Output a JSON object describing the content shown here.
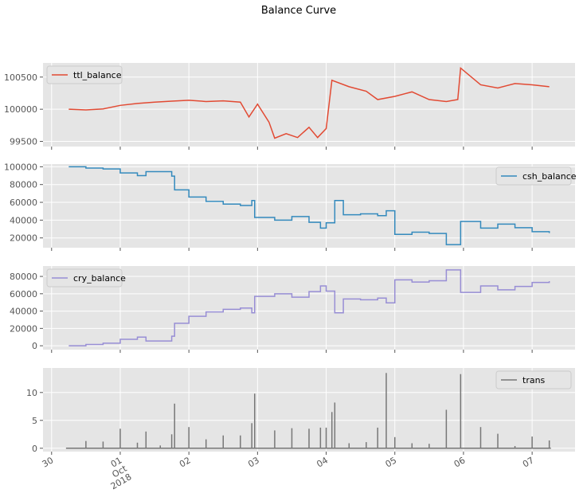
{
  "chart_data": {
    "title": "Balance Curve",
    "type": "line",
    "x_axis": {
      "tick_labels": [
        {
          "text": "30",
          "date": "2018-09-30"
        },
        {
          "text": "01\nOct\n2018",
          "date": "2018-10-01"
        },
        {
          "text": "02",
          "date": "2018-10-02"
        },
        {
          "text": "03",
          "date": "2018-10-03"
        },
        {
          "text": "04",
          "date": "2018-10-04"
        },
        {
          "text": "05",
          "date": "2018-10-05"
        },
        {
          "text": "06",
          "date": "2018-10-06"
        },
        {
          "text": "07",
          "date": "2018-10-07"
        }
      ],
      "xlim": [
        "2018-09-29T21:00",
        "2018-10-07T15:00"
      ]
    },
    "grid": true,
    "panels": [
      {
        "series_name": "ttl_balance",
        "color": "#E24A33",
        "legend_position": "upper left",
        "type": "line",
        "ylim": [
          99420,
          100720
        ],
        "yticks": [
          99500,
          100000,
          100500
        ],
        "ytick_labels": [
          "99500",
          "100000",
          "100500"
        ],
        "points": [
          [
            "2018-09-30T06:00",
            100000
          ],
          [
            "2018-09-30T12:00",
            99990
          ],
          [
            "2018-09-30T18:00",
            100005
          ],
          [
            "2018-10-01T00:00",
            100060
          ],
          [
            "2018-10-01T06:00",
            100090
          ],
          [
            "2018-10-01T12:00",
            100110
          ],
          [
            "2018-10-01T18:00",
            100125
          ],
          [
            "2018-10-02T00:00",
            100140
          ],
          [
            "2018-10-02T06:00",
            100120
          ],
          [
            "2018-10-02T12:00",
            100130
          ],
          [
            "2018-10-02T18:00",
            100110
          ],
          [
            "2018-10-02T21:00",
            99880
          ],
          [
            "2018-10-03T00:00",
            100080
          ],
          [
            "2018-10-03T04:00",
            99800
          ],
          [
            "2018-10-03T06:00",
            99550
          ],
          [
            "2018-10-03T10:00",
            99620
          ],
          [
            "2018-10-03T14:00",
            99560
          ],
          [
            "2018-10-03T18:00",
            99720
          ],
          [
            "2018-10-03T21:00",
            99560
          ],
          [
            "2018-10-04T00:00",
            99700
          ],
          [
            "2018-10-04T02:00",
            100450
          ],
          [
            "2018-10-04T08:00",
            100350
          ],
          [
            "2018-10-04T14:00",
            100280
          ],
          [
            "2018-10-04T18:00",
            100150
          ],
          [
            "2018-10-05T00:00",
            100200
          ],
          [
            "2018-10-05T06:00",
            100270
          ],
          [
            "2018-10-05T12:00",
            100150
          ],
          [
            "2018-10-05T18:00",
            100120
          ],
          [
            "2018-10-05T22:00",
            100150
          ],
          [
            "2018-10-05T23:00",
            100640
          ],
          [
            "2018-10-06T06:00",
            100380
          ],
          [
            "2018-10-06T12:00",
            100330
          ],
          [
            "2018-10-06T18:00",
            100400
          ],
          [
            "2018-10-07T00:00",
            100380
          ],
          [
            "2018-10-07T06:00",
            100350
          ]
        ]
      },
      {
        "series_name": "csh_balance",
        "color": "#348ABD",
        "legend_position": "upper right",
        "type": "step",
        "ylim": [
          9000,
          103000
        ],
        "yticks": [
          20000,
          40000,
          60000,
          80000,
          100000
        ],
        "ytick_labels": [
          "20000",
          "40000",
          "60000",
          "80000",
          "100000"
        ],
        "points": [
          [
            "2018-09-30T06:00",
            100000
          ],
          [
            "2018-09-30T12:00",
            98500
          ],
          [
            "2018-09-30T18:00",
            97500
          ],
          [
            "2018-10-01T00:00",
            93000
          ],
          [
            "2018-10-01T06:00",
            90000
          ],
          [
            "2018-10-01T09:00",
            94500
          ],
          [
            "2018-10-01T18:00",
            89500
          ],
          [
            "2018-10-01T19:00",
            74000
          ],
          [
            "2018-10-02T00:00",
            66000
          ],
          [
            "2018-10-02T06:00",
            61000
          ],
          [
            "2018-10-02T12:00",
            58000
          ],
          [
            "2018-10-02T18:00",
            56500
          ],
          [
            "2018-10-02T22:00",
            62000
          ],
          [
            "2018-10-02T23:00",
            43000
          ],
          [
            "2018-10-03T06:00",
            40000
          ],
          [
            "2018-10-03T12:00",
            44000
          ],
          [
            "2018-10-03T18:00",
            37500
          ],
          [
            "2018-10-03T22:00",
            31000
          ],
          [
            "2018-10-04T00:00",
            37000
          ],
          [
            "2018-10-04T03:00",
            62000
          ],
          [
            "2018-10-04T06:00",
            46000
          ],
          [
            "2018-10-04T12:00",
            47000
          ],
          [
            "2018-10-04T18:00",
            45000
          ],
          [
            "2018-10-04T21:00",
            50500
          ],
          [
            "2018-10-05T00:00",
            24000
          ],
          [
            "2018-10-05T06:00",
            26500
          ],
          [
            "2018-10-05T12:00",
            25000
          ],
          [
            "2018-10-05T18:00",
            12500
          ],
          [
            "2018-10-05T23:00",
            38500
          ],
          [
            "2018-10-06T06:00",
            31000
          ],
          [
            "2018-10-06T12:00",
            35500
          ],
          [
            "2018-10-06T18:00",
            31500
          ],
          [
            "2018-10-07T00:00",
            27000
          ],
          [
            "2018-10-07T06:00",
            25500
          ]
        ]
      },
      {
        "series_name": "cry_balance",
        "color": "#988ED5",
        "legend_position": "upper left",
        "type": "step",
        "ylim": [
          -4500,
          92000
        ],
        "yticks": [
          0,
          20000,
          40000,
          60000,
          80000
        ],
        "ytick_labels": [
          "0",
          "20000",
          "40000",
          "60000",
          "80000"
        ],
        "points": [
          [
            "2018-09-30T06:00",
            0
          ],
          [
            "2018-09-30T12:00",
            1500
          ],
          [
            "2018-09-30T18:00",
            3000
          ],
          [
            "2018-10-01T00:00",
            7500
          ],
          [
            "2018-10-01T06:00",
            10000
          ],
          [
            "2018-10-01T09:00",
            5500
          ],
          [
            "2018-10-01T18:00",
            11000
          ],
          [
            "2018-10-01T19:00",
            26000
          ],
          [
            "2018-10-02T00:00",
            34000
          ],
          [
            "2018-10-02T06:00",
            39000
          ],
          [
            "2018-10-02T12:00",
            42000
          ],
          [
            "2018-10-02T18:00",
            43500
          ],
          [
            "2018-10-02T22:00",
            38000
          ],
          [
            "2018-10-02T23:00",
            57000
          ],
          [
            "2018-10-03T06:00",
            60000
          ],
          [
            "2018-10-03T12:00",
            56000
          ],
          [
            "2018-10-03T18:00",
            62500
          ],
          [
            "2018-10-03T22:00",
            69000
          ],
          [
            "2018-10-04T00:00",
            63000
          ],
          [
            "2018-10-04T03:00",
            38000
          ],
          [
            "2018-10-04T06:00",
            54000
          ],
          [
            "2018-10-04T12:00",
            53000
          ],
          [
            "2018-10-04T18:00",
            55000
          ],
          [
            "2018-10-04T21:00",
            49500
          ],
          [
            "2018-10-05T00:00",
            76000
          ],
          [
            "2018-10-05T06:00",
            73500
          ],
          [
            "2018-10-05T12:00",
            75000
          ],
          [
            "2018-10-05T18:00",
            87500
          ],
          [
            "2018-10-05T23:00",
            61500
          ],
          [
            "2018-10-06T06:00",
            69000
          ],
          [
            "2018-10-06T12:00",
            64500
          ],
          [
            "2018-10-06T18:00",
            68500
          ],
          [
            "2018-10-07T00:00",
            73000
          ],
          [
            "2018-10-07T06:00",
            74500
          ]
        ]
      },
      {
        "series_name": "trans",
        "color": "#777777",
        "legend_position": "upper right",
        "type": "impulse",
        "ylim": [
          -0.6,
          14.4
        ],
        "yticks": [
          0,
          5,
          10
        ],
        "ytick_labels": [
          "0",
          "5",
          "10"
        ],
        "points": [
          [
            "2018-09-30T12:00",
            1.3
          ],
          [
            "2018-09-30T18:00",
            1.2
          ],
          [
            "2018-10-01T00:00",
            3.5
          ],
          [
            "2018-10-01T06:00",
            1.0
          ],
          [
            "2018-10-01T09:00",
            3.0
          ],
          [
            "2018-10-01T14:00",
            0.5
          ],
          [
            "2018-10-01T18:00",
            2.5
          ],
          [
            "2018-10-01T19:00",
            8.0
          ],
          [
            "2018-10-02T00:00",
            3.8
          ],
          [
            "2018-10-02T06:00",
            1.6
          ],
          [
            "2018-10-02T12:00",
            2.3
          ],
          [
            "2018-10-02T18:00",
            2.3
          ],
          [
            "2018-10-02T22:00",
            4.5
          ],
          [
            "2018-10-02T23:00",
            9.8
          ],
          [
            "2018-10-03T06:00",
            3.2
          ],
          [
            "2018-10-03T12:00",
            3.6
          ],
          [
            "2018-10-03T18:00",
            3.5
          ],
          [
            "2018-10-03T22:00",
            3.7
          ],
          [
            "2018-10-04T00:00",
            3.7
          ],
          [
            "2018-10-04T02:00",
            6.5
          ],
          [
            "2018-10-04T03:00",
            8.2
          ],
          [
            "2018-10-04T08:00",
            0.9
          ],
          [
            "2018-10-04T14:00",
            1.1
          ],
          [
            "2018-10-04T18:00",
            3.7
          ],
          [
            "2018-10-04T21:00",
            13.5
          ],
          [
            "2018-10-05T00:00",
            2.0
          ],
          [
            "2018-10-05T06:00",
            0.9
          ],
          [
            "2018-10-05T12:00",
            0.8
          ],
          [
            "2018-10-05T18:00",
            6.9
          ],
          [
            "2018-10-05T23:00",
            13.3
          ],
          [
            "2018-10-06T06:00",
            3.8
          ],
          [
            "2018-10-06T12:00",
            2.6
          ],
          [
            "2018-10-06T18:00",
            0.4
          ],
          [
            "2018-10-07T00:00",
            2.1
          ],
          [
            "2018-10-07T06:00",
            1.4
          ]
        ]
      }
    ]
  }
}
